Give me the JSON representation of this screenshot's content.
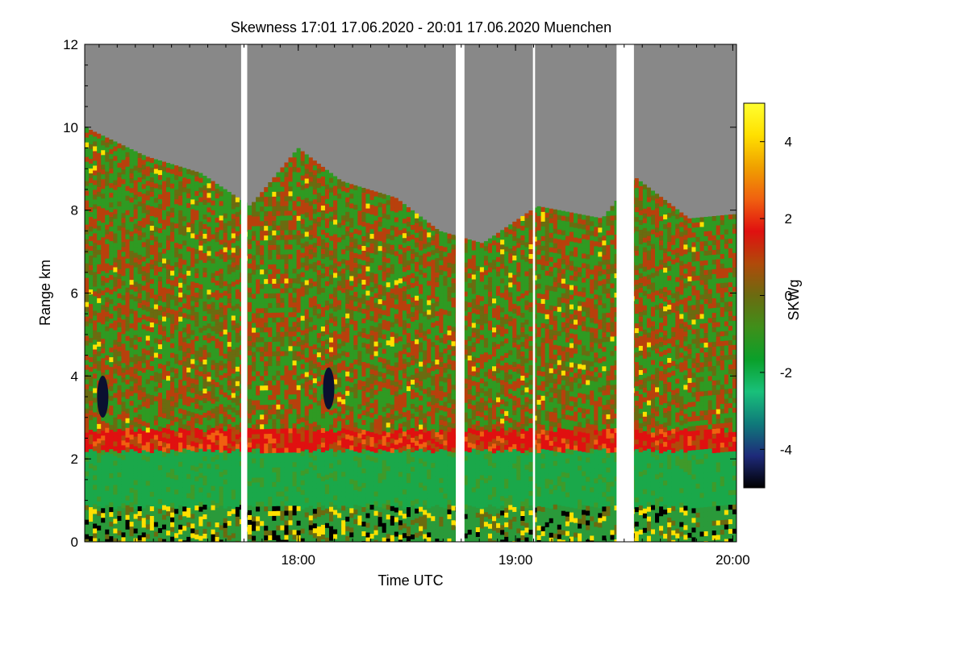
{
  "chart_data": {
    "type": "heatmap",
    "title": "Skewness   17:01 17.06.2020 - 20:01 17.06.2020 Muenchen",
    "xlabel": "Time UTC",
    "ylabel": "Range km",
    "x_range_hours": [
      17.017,
      20.017
    ],
    "x_ticks": [
      {
        "value": 18.0,
        "label": "18:00"
      },
      {
        "value": 19.0,
        "label": "19:00"
      },
      {
        "value": 20.0,
        "label": "20:00"
      }
    ],
    "ylim": [
      0,
      12
    ],
    "y_ticks": [
      {
        "value": 0,
        "label": "0"
      },
      {
        "value": 2,
        "label": "2"
      },
      {
        "value": 4,
        "label": "4"
      },
      {
        "value": 6,
        "label": "6"
      },
      {
        "value": 8,
        "label": "8"
      },
      {
        "value": 10,
        "label": "10"
      },
      {
        "value": 12,
        "label": "12"
      }
    ],
    "colorbar": {
      "label": "SKWg",
      "range": [
        -5,
        5
      ],
      "ticks": [
        {
          "value": 4,
          "label": "4"
        },
        {
          "value": 2,
          "label": "2"
        },
        {
          "value": 0,
          "label": "0"
        },
        {
          "value": -2,
          "label": "-2"
        },
        {
          "value": -4,
          "label": "-4"
        }
      ],
      "colors": [
        "#000000",
        "#1e2a7a",
        "#0f7a7a",
        "#19c07a",
        "#0aa02a",
        "#3f8f1a",
        "#6b6b10",
        "#b04a0a",
        "#e01010",
        "#f06010",
        "#f0a000",
        "#ffe000",
        "#ffff30"
      ]
    },
    "no_data_color": "#888888",
    "cloud_top_km": [
      {
        "time": 17.02,
        "top": 10.0
      },
      {
        "time": 17.3,
        "top": 9.3
      },
      {
        "time": 17.55,
        "top": 8.9
      },
      {
        "time": 17.78,
        "top": 8.1
      },
      {
        "time": 18.0,
        "top": 9.5
      },
      {
        "time": 18.2,
        "top": 8.7
      },
      {
        "time": 18.45,
        "top": 8.3
      },
      {
        "time": 18.65,
        "top": 7.5
      },
      {
        "time": 18.85,
        "top": 7.2
      },
      {
        "time": 19.1,
        "top": 8.1
      },
      {
        "time": 19.4,
        "top": 7.8
      },
      {
        "time": 19.55,
        "top": 8.8
      },
      {
        "time": 19.8,
        "top": 7.8
      },
      {
        "time": 20.0,
        "top": 7.9
      }
    ],
    "boundary_layer_top_km": 2.4,
    "data_gaps_hours": [
      [
        17.737,
        17.765
      ],
      [
        18.725,
        18.765
      ],
      [
        19.08,
        19.09
      ],
      [
        19.465,
        19.545
      ]
    ],
    "annotations": [
      {
        "text": "strong negative skewness pocket",
        "time": 17.1,
        "range_km": 3.5,
        "value": -4
      },
      {
        "text": "strong negative skewness pocket",
        "time": 18.14,
        "range_km": 3.7,
        "value": -4
      },
      {
        "text": "positive skewness band at boundary-layer top",
        "time_span": [
          17.02,
          20.0
        ],
        "range_km": 2.5,
        "value": 1.5
      }
    ]
  }
}
